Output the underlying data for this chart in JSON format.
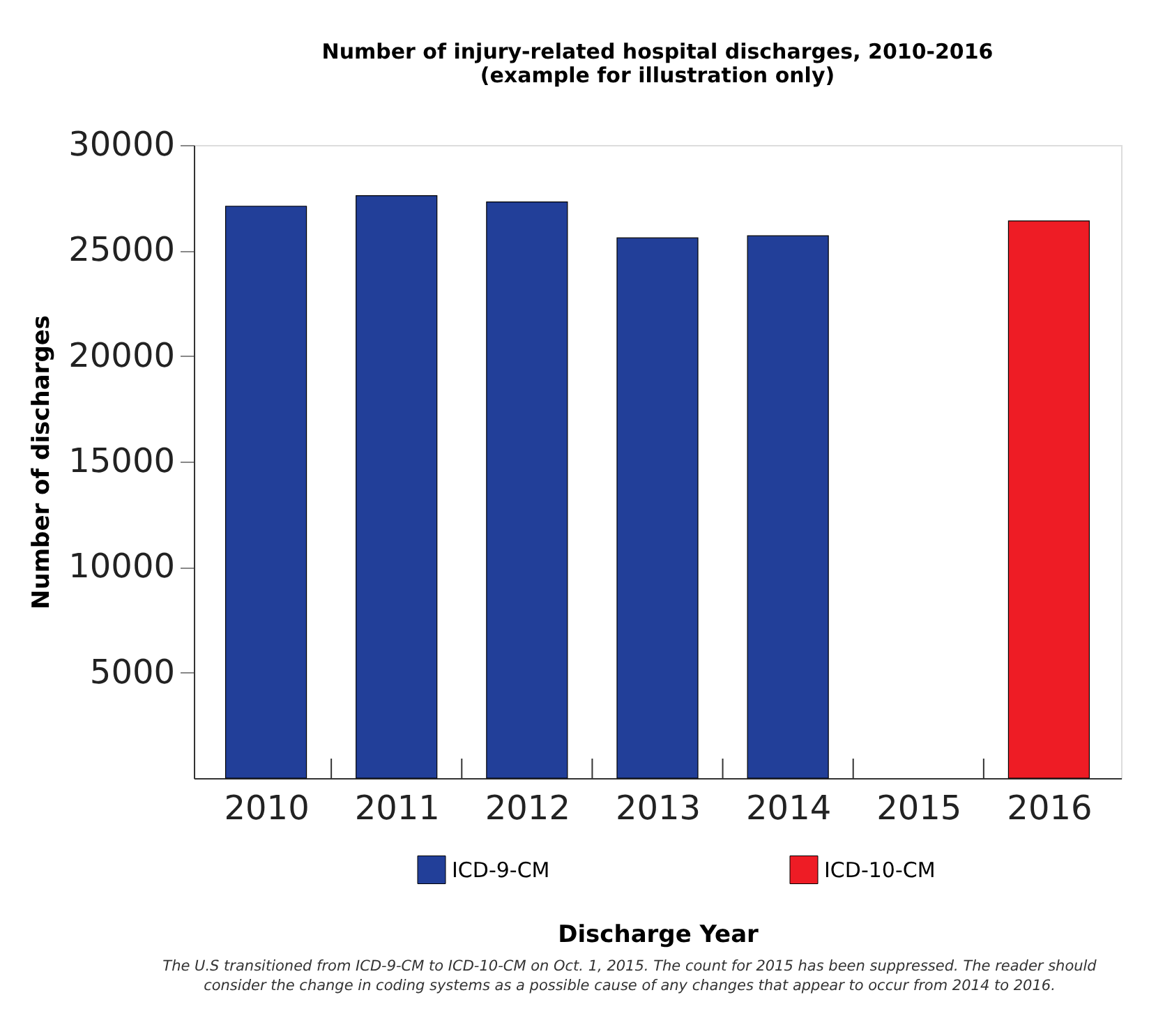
{
  "chart_data": {
    "type": "bar",
    "title": "Number of injury-related hospital discharges, 2010-2016",
    "subtitle": "(example for illustration only)",
    "xlabel": "Discharge Year",
    "ylabel": "Number of discharges",
    "categories": [
      "2010",
      "2011",
      "2012",
      "2013",
      "2014",
      "2015",
      "2016"
    ],
    "series": [
      {
        "name": "ICD-9-CM",
        "color": "#223f99",
        "values": [
          27100,
          27600,
          27300,
          25600,
          25700,
          null,
          null
        ]
      },
      {
        "name": "ICD-10-CM",
        "color": "#ee1c25",
        "values": [
          null,
          null,
          null,
          null,
          null,
          null,
          26400
        ]
      }
    ],
    "ylim": [
      0,
      30000
    ],
    "yticks": [
      5000,
      10000,
      15000,
      20000,
      25000,
      30000
    ],
    "grid": false,
    "legend": "bottom",
    "annotations": [
      "The U.S transitioned from ICD-9-CM to ICD-10-CM on Oct. 1, 2015.  The count for 2015 has been suppressed. The reader should consider the change in coding systems as a possible cause of any changes that appear to occur from 2014 to 2016."
    ]
  }
}
